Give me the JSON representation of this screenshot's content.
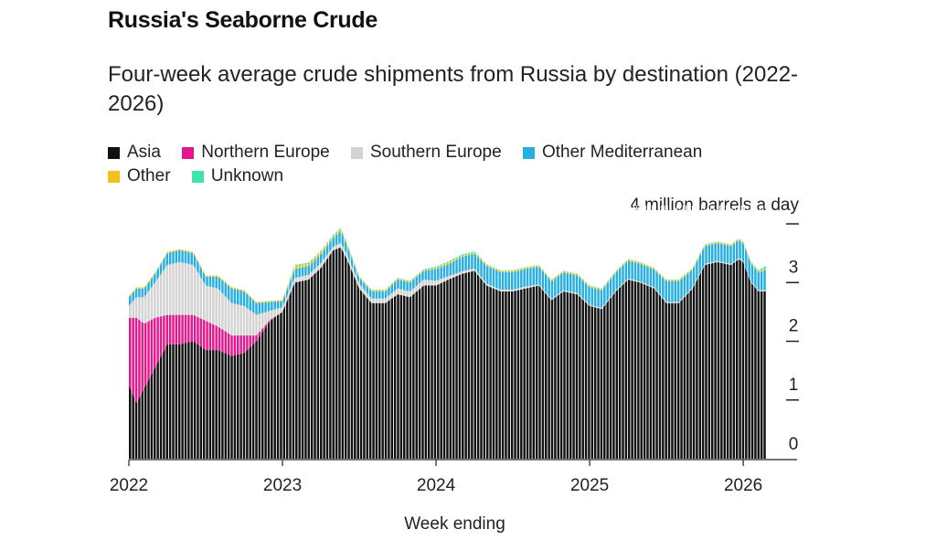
{
  "title": "Russia's Seaborne Crude",
  "subtitle": "Four-week average crude shipments from Russia by destination (2022-2026)",
  "unit_label": "4 million barrels a day",
  "legend": [
    {
      "name": "Asia",
      "color": "#111111"
    },
    {
      "name": "Northern Europe",
      "color": "#e6168c"
    },
    {
      "name": "Southern Europe",
      "color": "#d3d3d3"
    },
    {
      "name": "Other Mediterranean",
      "color": "#27aee3"
    },
    {
      "name": "Other",
      "color": "#f2c21b"
    },
    {
      "name": "Unknown",
      "color": "#3ee6a6"
    }
  ],
  "chart_data": {
    "type": "area",
    "stacked": true,
    "title": "Russia's Seaborne Crude",
    "xlabel": "Week ending",
    "ylabel": "million barrels a day",
    "xlim": [
      2022.0,
      2026.16
    ],
    "ylim": [
      0,
      4
    ],
    "x_ticks": [
      "2022",
      "2023",
      "2024",
      "2025",
      "2026"
    ],
    "y_ticks": [
      "0",
      "1",
      "2",
      "3"
    ],
    "x": [
      2022.0,
      2022.05,
      2022.1,
      2022.17,
      2022.25,
      2022.33,
      2022.42,
      2022.5,
      2022.58,
      2022.67,
      2022.75,
      2022.83,
      2022.92,
      2023.0,
      2023.08,
      2023.17,
      2023.25,
      2023.33,
      2023.38,
      2023.42,
      2023.5,
      2023.58,
      2023.67,
      2023.75,
      2023.83,
      2023.92,
      2024.0,
      2024.08,
      2024.17,
      2024.25,
      2024.33,
      2024.42,
      2024.5,
      2024.58,
      2024.67,
      2024.75,
      2024.83,
      2024.92,
      2025.0,
      2025.08,
      2025.17,
      2025.25,
      2025.33,
      2025.42,
      2025.5,
      2025.58,
      2025.67,
      2025.75,
      2025.83,
      2025.92,
      2025.97,
      2026.0,
      2026.05,
      2026.1,
      2026.15
    ],
    "series": [
      {
        "name": "Asia",
        "values": [
          1.25,
          0.95,
          1.2,
          1.55,
          1.95,
          1.95,
          2.0,
          1.85,
          1.85,
          1.75,
          1.8,
          2.0,
          2.35,
          2.5,
          3.0,
          3.05,
          3.25,
          3.55,
          3.6,
          3.4,
          2.9,
          2.65,
          2.65,
          2.8,
          2.75,
          2.95,
          2.95,
          3.05,
          3.15,
          3.2,
          2.95,
          2.85,
          2.85,
          2.9,
          2.95,
          2.7,
          2.85,
          2.8,
          2.6,
          2.55,
          2.85,
          3.05,
          3.0,
          2.9,
          2.65,
          2.65,
          2.9,
          3.3,
          3.35,
          3.3,
          3.4,
          3.35,
          3.0,
          2.85,
          2.85
        ]
      },
      {
        "name": "Northern Europe",
        "values": [
          1.15,
          1.45,
          1.1,
          0.85,
          0.5,
          0.5,
          0.45,
          0.5,
          0.4,
          0.35,
          0.3,
          0.1,
          0.02,
          0.0,
          0.0,
          0.0,
          0.0,
          0.0,
          0.0,
          0.0,
          0.0,
          0.0,
          0.0,
          0.0,
          0.0,
          0.0,
          0.0,
          0.0,
          0.0,
          0.0,
          0.0,
          0.0,
          0.0,
          0.0,
          0.0,
          0.0,
          0.0,
          0.0,
          0.0,
          0.0,
          0.0,
          0.0,
          0.0,
          0.0,
          0.0,
          0.0,
          0.0,
          0.0,
          0.0,
          0.0,
          0.0,
          0.0,
          0.0,
          0.0,
          0.0
        ]
      },
      {
        "name": "Southern Europe",
        "values": [
          0.2,
          0.35,
          0.45,
          0.6,
          0.85,
          0.9,
          0.85,
          0.6,
          0.65,
          0.55,
          0.5,
          0.35,
          0.15,
          0.08,
          0.08,
          0.08,
          0.08,
          0.06,
          0.08,
          0.08,
          0.08,
          0.08,
          0.08,
          0.1,
          0.1,
          0.1,
          0.08,
          0.06,
          0.04,
          0.04,
          0.03,
          0.03,
          0.03,
          0.03,
          0.02,
          0.02,
          0.02,
          0.02,
          0.02,
          0.02,
          0.02,
          0.02,
          0.02,
          0.02,
          0.02,
          0.02,
          0.02,
          0.02,
          0.02,
          0.02,
          0.02,
          0.02,
          0.02,
          0.02,
          0.02
        ]
      },
      {
        "name": "Other Mediterranean",
        "values": [
          0.15,
          0.15,
          0.15,
          0.15,
          0.2,
          0.2,
          0.2,
          0.15,
          0.2,
          0.25,
          0.25,
          0.2,
          0.15,
          0.1,
          0.15,
          0.15,
          0.15,
          0.15,
          0.2,
          0.15,
          0.1,
          0.12,
          0.12,
          0.15,
          0.15,
          0.15,
          0.2,
          0.2,
          0.25,
          0.25,
          0.3,
          0.3,
          0.3,
          0.3,
          0.3,
          0.3,
          0.3,
          0.3,
          0.3,
          0.3,
          0.3,
          0.3,
          0.3,
          0.3,
          0.35,
          0.35,
          0.3,
          0.3,
          0.3,
          0.3,
          0.3,
          0.3,
          0.3,
          0.3,
          0.35
        ]
      },
      {
        "name": "Other",
        "values": [
          0.02,
          0.02,
          0.02,
          0.02,
          0.02,
          0.02,
          0.02,
          0.02,
          0.02,
          0.02,
          0.02,
          0.02,
          0.02,
          0.02,
          0.05,
          0.04,
          0.04,
          0.03,
          0.03,
          0.03,
          0.02,
          0.02,
          0.02,
          0.02,
          0.02,
          0.02,
          0.02,
          0.03,
          0.02,
          0.02,
          0.02,
          0.02,
          0.02,
          0.02,
          0.02,
          0.02,
          0.02,
          0.02,
          0.02,
          0.02,
          0.02,
          0.02,
          0.02,
          0.02,
          0.02,
          0.02,
          0.02,
          0.02,
          0.02,
          0.02,
          0.02,
          0.02,
          0.02,
          0.02,
          0.02
        ]
      },
      {
        "name": "Unknown",
        "values": [
          0.0,
          0.0,
          0.0,
          0.0,
          0.0,
          0.0,
          0.0,
          0.0,
          0.0,
          0.0,
          0.0,
          0.0,
          0.0,
          0.0,
          0.02,
          0.02,
          0.02,
          0.02,
          0.02,
          0.02,
          0.01,
          0.01,
          0.01,
          0.01,
          0.01,
          0.01,
          0.02,
          0.02,
          0.02,
          0.02,
          0.01,
          0.01,
          0.01,
          0.01,
          0.01,
          0.01,
          0.01,
          0.01,
          0.01,
          0.01,
          0.01,
          0.01,
          0.01,
          0.01,
          0.01,
          0.01,
          0.01,
          0.01,
          0.01,
          0.01,
          0.01,
          0.01,
          0.02,
          0.02,
          0.05
        ]
      }
    ]
  }
}
